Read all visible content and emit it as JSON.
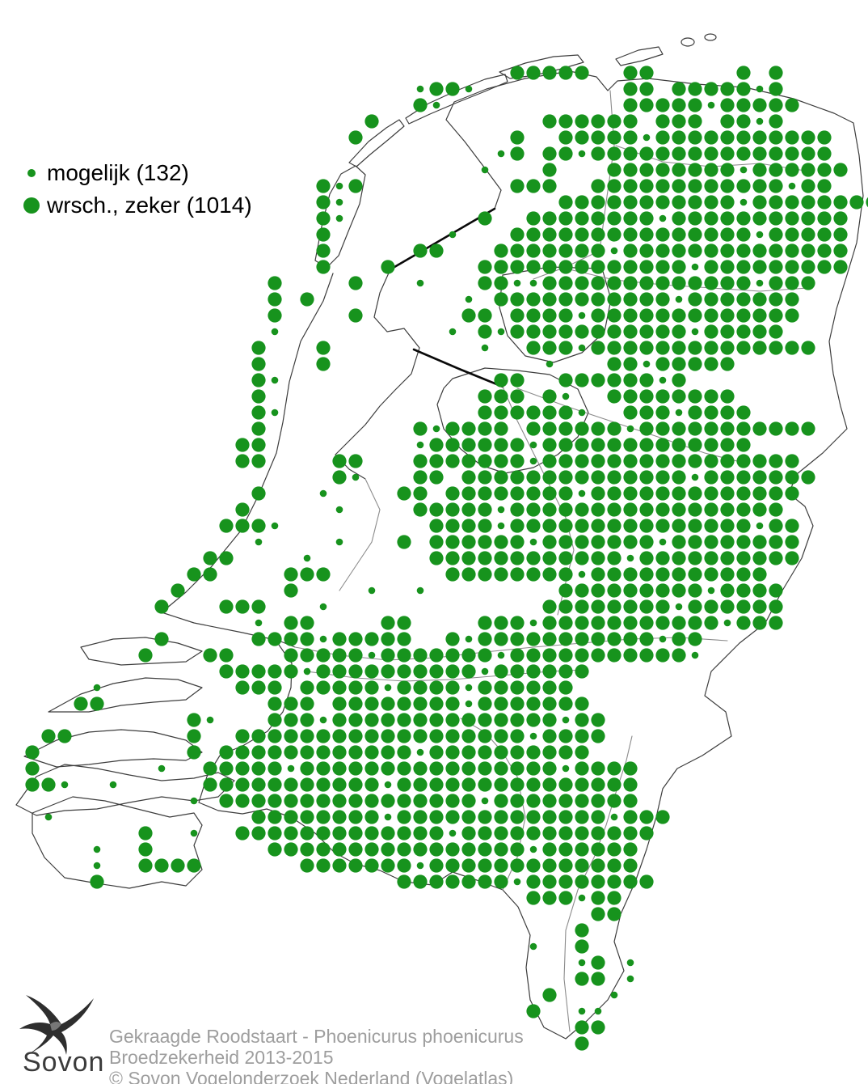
{
  "legend": {
    "items": [
      {
        "label": "mogelijk (132)",
        "size": "small",
        "count": 132
      },
      {
        "label": "wrsch., zeker (1014)",
        "size": "large",
        "count": 1014
      }
    ]
  },
  "caption": {
    "line1": "Gekraagde Roodstaart - Phoenicurus phoenicurus",
    "line2": "Broedzekerheid 2013-2015",
    "line3": "© Sovon Vogelonderzoek Nederland (Vogelatlas)"
  },
  "logo": {
    "text": "Sovon"
  },
  "colors": {
    "dot_green": "#17931d",
    "outline": "#3d3d3d",
    "river": "#8b8b8b",
    "caption_text": "#9e9e9e",
    "logo_text": "#3b3b3b"
  },
  "map": {
    "description": "Breeding distribution dot grid; '.'=none, 'o'=mogelijk (small dot), 'O'=wrsch./zeker (large dot); cell centers at x=20*col, y=20*row+10",
    "grid": {
      "rows": [
        "......................................................",
        "......................................................",
        "......................................................",
        "......................................................",
        "................................OOOOO..OO.....O.O.....",
        "..........................oOOo.........OO.OOOOOoO....",
        "..........................Oo...........OOOOOoOOOOO...",
        ".......................O..........OOOOOO.OOO.OOoO..",
        "......................O.........O..OOOOOoOOOOOOOOOOO..",
        "...............................oO.OOoOOOOOOOOOOOOOOO.",
        "..............................o...O...OOOOOOOOoOOOOOO.",
        "....................OoO.........OOO..OOOOOOOOOOOOoOO.",
        "....................Oo.............OOOOOOOOOOOoOOOOOOOO.",
        "....................Oo........O..OOOOOOOOoOOOOOOOOOOO.",
        "....................O.......o...OOOOOOOOOOOOOOOoOOOOO.",
        "....................O.....OO...OOOOOOOoOOOOOOOOOOOOOO.",
        "....................O...O.....OOOOOOOOOOOOOoOOOOOOOOO.",
        ".................O....O...o...OOooOOOOOOOOOOOOOoOOO.",
        ".................O.O.........o.OOOOOOOOOOOoOOOOOOO.",
        ".................O....O......OO.OOOOoOOOOOOOOOOOOO.",
        ".................o..........o.OoOOOOOOOOOOOoOOOOO.",
        "................O...O.........o..OOOoOOOOOOOOOOOOOO.",
        "................O...O.............o...OOoOOOOO.......",
        "................Oo.............OO..OOOOOOoO.......",
        "................O.............OOO.Oo..OOOOOOOO.......",
        "................Oo............OOOOOOo..OOOoOOOO.......",
        "................O.........OoOOOO.OOOOOOoOOOOOOOOOOO..",
        "...............OO.........oOOOOOOoOOOOOOOOOOOOO...",
        "...............OO....OO...OOOOOOOoOOOOOOOOOOOOOOOO...",
        ".....................Oo...OO.OOOOOOOOOOOOOOoOOOOOOO...",
        "................O...o....OO.OOOOOOOOoOOOOOOOOOOOOO....",
        "...............O.....o....OOOOOoOOOOOOOOOOOOOOOOO....",
        "..............OOOo.........OOOOoOOOOOOOOOOOOOOOoOO....",
        "................o....o...O.OOOOOOoOOOOOOOoOOOOOOOO....",
        ".............OO....o.......OOOOOOOOOOOOoOOOOOOOOOO.....",
        "............OO....OOO.......OOOOOOOOoOOOOOOOOOOO......",
        "...........O......O....o..o........OOOOOOOOOoOOOO.....",
        "..........O...OOO...o.............OOOOOOOOoOOOOOO.....",
        "................o.OO....OO....OOOoOOOOOOOOOOOoOOO.....",
        "..........O.....OOOOoOOOOO..OoOOOOOOOOOOOoOO.........",
        ".........O...OO...OOOOOoOOOOOOOoOOOOOOOOOOOo.........",
        "..............OOOOOoOOOOOOOOOOoOOOOOO................",
        "......o........OOO.OOOOOoOOOOoOOOOOO.................",
        ".....OO..........OOO.OOOOOOOOoOOOOOOO................",
        "............Oo...OOOoOOOOOOOOOOOOOOoOO...............",
        "...OO.......O..OOOOOOOOOOOOOOOOOOoOOOO...............",
        "..O.........O.OOOOOOOOOOOOoOOOOOOOOOO................",
        "..O.......o..OOOOOoOOOOOOOOOOOOOOOOoOOOO.............",
        "..OOo..o.....OOOOOOOOOOOoOOOOOOOOOOOOOOO.............",
        "............o.OOOOOOOOOOOOOOOOoOOOOOOOOO.............",
        "...o............OOOOOOOOoOOOOOOOOOOOOOoOOO...........",
        ".........O..o..OOOOOOOOOOOOOoOOOOOOOOOOOO............",
        "......o..O.......OOOOOOOOOOOOOOOOoOOOOOO.............",
        "......o..OOOO......OOOOOOOoOOOOOOOOOOOOO.............",
        "......O..................OOOOOOOoOOOOOOOO............",
        ".................................OOOoOO..............",
        ".....................................OO..............",
        "....................................O................",
        ".................................o..O................",
        "....................................oO.o.............",
        "....................................OO.o.............",
        "..................................O...o..............",
        ".................................O..oo...............",
        "....................................OO...............",
        "....................................O................",
        "......................................................"
      ]
    }
  }
}
